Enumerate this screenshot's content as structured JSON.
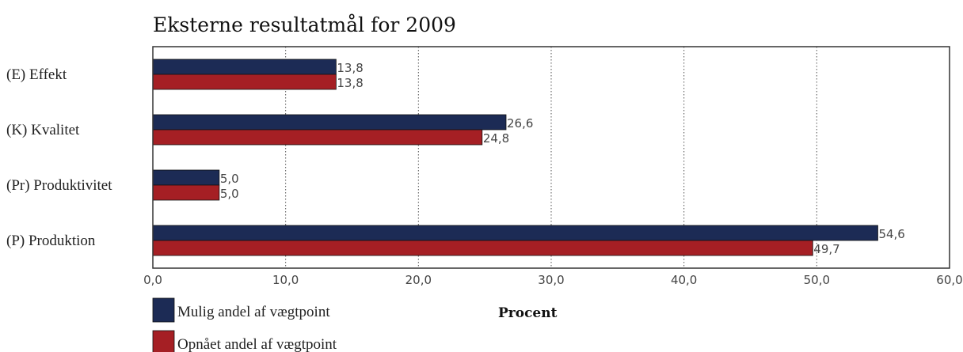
{
  "chart_data": {
    "type": "bar",
    "orientation": "horizontal",
    "title": "Eksterne resultatmål for 2009",
    "xlabel": "Procent",
    "ylabel": "",
    "categories": [
      "(E) Effekt",
      "(K) Kvalitet",
      "(Pr) Produktivitet",
      "(P) Produktion"
    ],
    "series": [
      {
        "name": "Mulig andel af vægtpoint",
        "color": "#1c2b55",
        "values": [
          13.8,
          26.6,
          5.0,
          54.6
        ],
        "labels": [
          "13,8",
          "26,6",
          "5,0",
          "54,6"
        ]
      },
      {
        "name": "Opnået andel af vægtpoint",
        "color": "#a51f24",
        "values": [
          13.8,
          24.8,
          5.0,
          49.7
        ],
        "labels": [
          "13,8",
          "24,8",
          "5,0",
          "49,7"
        ]
      }
    ],
    "xlim": [
      0,
      60
    ],
    "xticks": [
      0,
      10,
      20,
      30,
      40,
      50,
      60
    ],
    "xtick_labels": [
      "0,0",
      "10,0",
      "20,0",
      "30,0",
      "40,0",
      "50,0",
      "60,0"
    ],
    "grid": "vertical dotted",
    "legend": "bottom-left"
  }
}
